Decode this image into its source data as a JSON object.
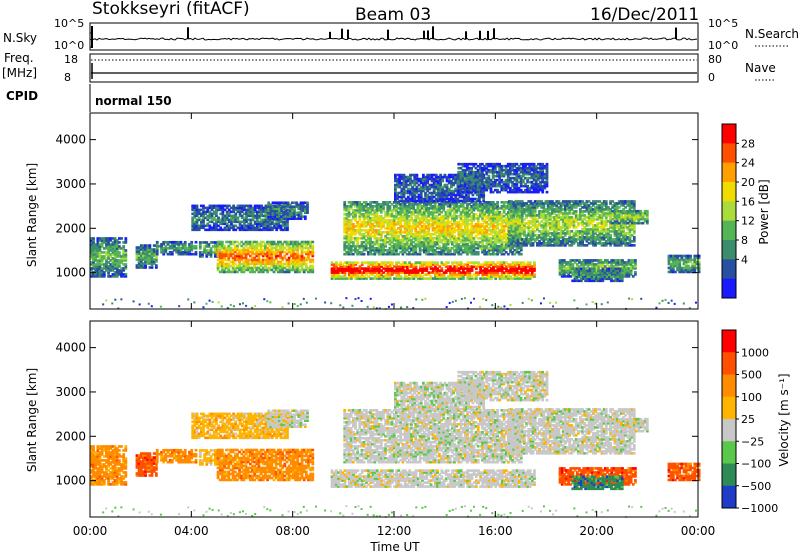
{
  "header": {
    "station": "Stokkseyri (fitACF)",
    "beam": "Beam 03",
    "date": "16/Dec/2011"
  },
  "noise_panel": {
    "left_label": "N.Sky",
    "right_label": "N.Search",
    "left_ticks": [
      "10^5",
      "10^0"
    ],
    "right_ticks": [
      "10^5",
      "10^0"
    ]
  },
  "freq_panel": {
    "left_label": "Freq.",
    "left_unit": "[MHz]",
    "right_label": "Nave",
    "left_ticks": [
      "18",
      "8"
    ],
    "right_ticks": [
      "80",
      "0"
    ]
  },
  "cpid_panel": {
    "label": "CPID",
    "mode": "normal 150"
  },
  "chart_data": [
    {
      "type": "heatmap",
      "name": "power",
      "ylabel": "Slant Range [km]",
      "yticks": [
        "4000",
        "3000",
        "2000",
        "1000"
      ],
      "ylim": [
        180,
        4600
      ],
      "colorbar_label": "Power [dB]",
      "colorbar_ticks": [
        "28",
        "24",
        "20",
        "16",
        "12",
        "8",
        "4"
      ],
      "colorbar_colors": [
        "#1a1aff",
        "#2850a0",
        "#3c8c6e",
        "#55b455",
        "#aadc3c",
        "#f0dc00",
        "#ffa000",
        "#ff5000",
        "#ff0000"
      ],
      "xlim_hours": [
        0,
        24
      ]
    },
    {
      "type": "heatmap",
      "name": "velocity",
      "ylabel": "Slant Range [km]",
      "yticks": [
        "4000",
        "3000",
        "2000",
        "1000"
      ],
      "ylim": [
        180,
        4600
      ],
      "colorbar_label": "Velocity [m s⁻¹]",
      "colorbar_ticks": [
        "1000",
        "500",
        "100",
        "25",
        "−25",
        "−100",
        "−500",
        "−1000"
      ],
      "colorbar_colors": [
        "#1e3cc8",
        "#2e8b57",
        "#5ac84a",
        "#c8c8c8",
        "#ffb400",
        "#ff8c00",
        "#ff5000",
        "#ff0000"
      ],
      "xlim_hours": [
        0,
        24
      ]
    }
  ],
  "xaxis": {
    "ticks": [
      "00:00",
      "04:00",
      "08:00",
      "12:00",
      "16:00",
      "20:00",
      "00:00"
    ],
    "label": "Time UT"
  }
}
